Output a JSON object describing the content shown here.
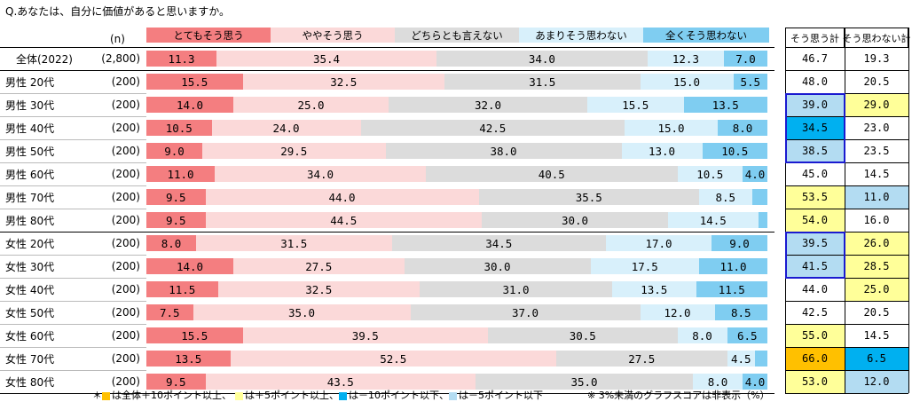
{
  "question": "Q.あなたは、自分に価値があると思いますか。",
  "n_label": "(n)",
  "summary_headers": [
    "そう思う計",
    "そう思わない計"
  ],
  "colors": {
    "seg": [
      "#f47e80",
      "#fbd9d9",
      "#dcdcdc",
      "#d8f0fb",
      "#7fcdf1"
    ],
    "seg_text": [
      "#000000",
      "#000000",
      "#000000",
      "#000000",
      "#000000"
    ],
    "yellow": "#ffff99",
    "orange": "#ffc000",
    "light_blue": "#b3dcf2",
    "blue": "#00b0f0"
  },
  "chart_data": {
    "type": "bar",
    "orientation": "horizontal",
    "stacked": true,
    "normalized": true,
    "legend_placement": "top",
    "series": [
      {
        "name": "とてもそう思う"
      },
      {
        "name": "ややそう思う"
      },
      {
        "name": "どちらとも言えない"
      },
      {
        "name": "あまりそう思わない"
      },
      {
        "name": "全くそう思わない"
      }
    ],
    "rows": [
      {
        "label": "全体(2022)",
        "n": "(2,800)",
        "values": [
          11.3,
          35.4,
          34.0,
          12.3,
          7.0
        ],
        "labels": [
          "11.3",
          "35.4",
          "34.0",
          "12.3",
          "7.0"
        ],
        "agree": "46.7",
        "disagree": "19.3",
        "agree_hl": "",
        "disagree_hl": ""
      },
      {
        "label": "男性 20代",
        "n": "(200)",
        "values": [
          15.5,
          32.5,
          31.5,
          15.0,
          5.5
        ],
        "labels": [
          "15.5",
          "32.5",
          "31.5",
          "15.0",
          "5.5"
        ],
        "agree": "48.0",
        "disagree": "20.5",
        "agree_hl": "",
        "disagree_hl": ""
      },
      {
        "label": "男性 30代",
        "n": "(200)",
        "values": [
          14.0,
          25.0,
          32.0,
          15.5,
          13.5
        ],
        "labels": [
          "14.0",
          "25.0",
          "32.0",
          "15.5",
          "13.5"
        ],
        "agree": "39.0",
        "disagree": "29.0",
        "agree_hl": "light_blue",
        "disagree_hl": "yellow"
      },
      {
        "label": "男性 40代",
        "n": "(200)",
        "values": [
          10.5,
          24.0,
          42.5,
          15.0,
          8.0
        ],
        "labels": [
          "10.5",
          "24.0",
          "42.5",
          "15.0",
          "8.0"
        ],
        "agree": "34.5",
        "disagree": "23.0",
        "agree_hl": "blue",
        "disagree_hl": ""
      },
      {
        "label": "男性 50代",
        "n": "(200)",
        "values": [
          9.0,
          29.5,
          38.0,
          13.0,
          10.5
        ],
        "labels": [
          "9.0",
          "29.5",
          "38.0",
          "13.0",
          "10.5"
        ],
        "agree": "38.5",
        "disagree": "23.5",
        "agree_hl": "light_blue",
        "disagree_hl": ""
      },
      {
        "label": "男性 60代",
        "n": "(200)",
        "values": [
          11.0,
          34.0,
          40.5,
          10.5,
          4.0
        ],
        "labels": [
          "11.0",
          "34.0",
          "40.5",
          "10.5",
          "4.0"
        ],
        "agree": "45.0",
        "disagree": "14.5",
        "agree_hl": "",
        "disagree_hl": ""
      },
      {
        "label": "男性 70代",
        "n": "(200)",
        "values": [
          9.5,
          44.0,
          35.5,
          8.5,
          2.5
        ],
        "labels": [
          "9.5",
          "44.0",
          "35.5",
          "8.5",
          ""
        ],
        "agree": "53.5",
        "disagree": "11.0",
        "agree_hl": "yellow",
        "disagree_hl": "light_blue"
      },
      {
        "label": "男性 80代",
        "n": "(200)",
        "values": [
          9.5,
          44.5,
          30.0,
          14.5,
          1.5
        ],
        "labels": [
          "9.5",
          "44.5",
          "30.0",
          "14.5",
          ""
        ],
        "agree": "54.0",
        "disagree": "16.0",
        "agree_hl": "yellow",
        "disagree_hl": ""
      },
      {
        "label": "女性 20代",
        "n": "(200)",
        "values": [
          8.0,
          31.5,
          34.5,
          17.0,
          9.0
        ],
        "labels": [
          "8.0",
          "31.5",
          "34.5",
          "17.0",
          "9.0"
        ],
        "agree": "39.5",
        "disagree": "26.0",
        "agree_hl": "light_blue",
        "disagree_hl": "yellow"
      },
      {
        "label": "女性 30代",
        "n": "(200)",
        "values": [
          14.0,
          27.5,
          30.0,
          17.5,
          11.0
        ],
        "labels": [
          "14.0",
          "27.5",
          "30.0",
          "17.5",
          "11.0"
        ],
        "agree": "41.5",
        "disagree": "28.5",
        "agree_hl": "light_blue",
        "disagree_hl": "yellow"
      },
      {
        "label": "女性 40代",
        "n": "(200)",
        "values": [
          11.5,
          32.5,
          31.0,
          13.5,
          11.5
        ],
        "labels": [
          "11.5",
          "32.5",
          "31.0",
          "13.5",
          "11.5"
        ],
        "agree": "44.0",
        "disagree": "25.0",
        "agree_hl": "",
        "disagree_hl": "yellow"
      },
      {
        "label": "女性 50代",
        "n": "(200)",
        "values": [
          7.5,
          35.0,
          37.0,
          12.0,
          8.5
        ],
        "labels": [
          "7.5",
          "35.0",
          "37.0",
          "12.0",
          "8.5"
        ],
        "agree": "42.5",
        "disagree": "20.5",
        "agree_hl": "",
        "disagree_hl": ""
      },
      {
        "label": "女性 60代",
        "n": "(200)",
        "values": [
          15.5,
          39.5,
          30.5,
          8.0,
          6.5
        ],
        "labels": [
          "15.5",
          "39.5",
          "30.5",
          "8.0",
          "6.5"
        ],
        "agree": "55.0",
        "disagree": "14.5",
        "agree_hl": "yellow",
        "disagree_hl": ""
      },
      {
        "label": "女性 70代",
        "n": "(200)",
        "values": [
          13.5,
          52.5,
          27.5,
          4.5,
          2.0
        ],
        "labels": [
          "13.5",
          "52.5",
          "27.5",
          "4.5",
          ""
        ],
        "agree": "66.0",
        "disagree": "6.5",
        "agree_hl": "orange",
        "disagree_hl": "blue"
      },
      {
        "label": "女性 80代",
        "n": "(200)",
        "values": [
          9.5,
          43.5,
          35.0,
          8.0,
          4.0
        ],
        "labels": [
          "9.5",
          "43.5",
          "35.0",
          "8.0",
          "4.0"
        ],
        "agree": "53.0",
        "disagree": "12.0",
        "agree_hl": "yellow",
        "disagree_hl": "light_blue"
      }
    ]
  },
  "footnote": {
    "prefix": "＊",
    "items": [
      {
        "color": "orange",
        "text": "は全体＋10ポイント以上、"
      },
      {
        "color": "yellow",
        "text": "は＋5ポイント以上、"
      },
      {
        "color": "blue",
        "text": "は－10ポイント以下、"
      },
      {
        "color": "light_blue",
        "text": "は－5ポイント以下"
      }
    ],
    "note": "※ 3%未満のグラフスコアは非表示（%）"
  }
}
